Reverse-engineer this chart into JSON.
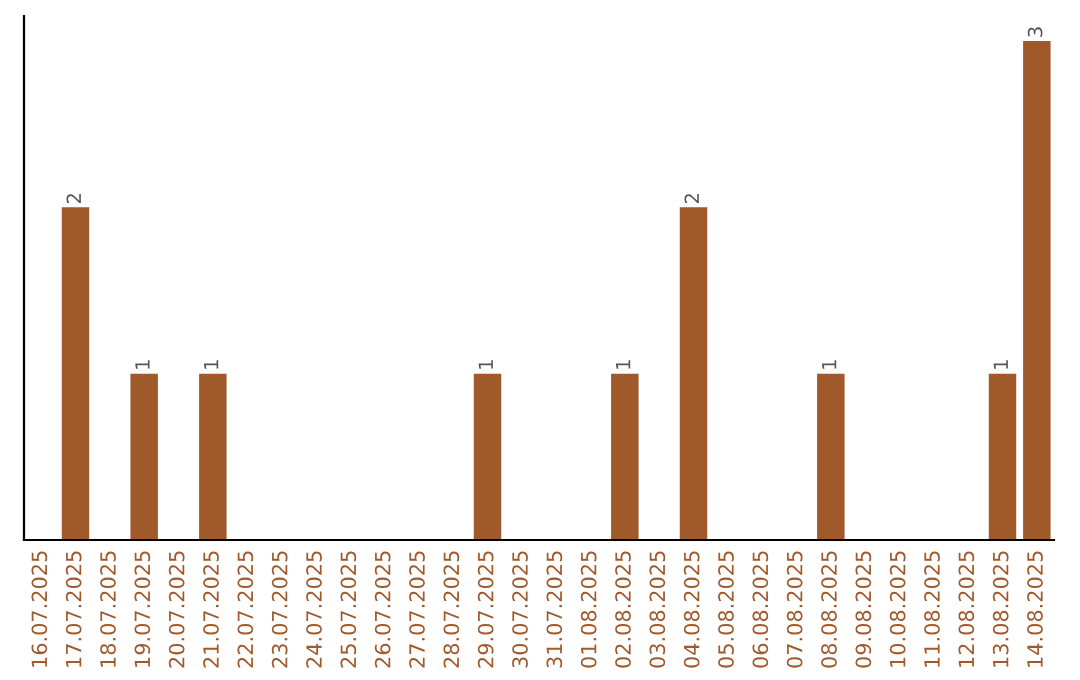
{
  "chart_data": {
    "type": "bar",
    "categories": [
      "16.07.2025",
      "17.07.2025",
      "18.07.2025",
      "19.07.2025",
      "20.07.2025",
      "21.07.2025",
      "22.07.2025",
      "23.07.2025",
      "24.07.2025",
      "25.07.2025",
      "26.07.2025",
      "27.07.2025",
      "28.07.2025",
      "29.07.2025",
      "30.07.2025",
      "31.07.2025",
      "01.08.2025",
      "02.08.2025",
      "03.08.2025",
      "04.08.2025",
      "05.08.2025",
      "06.08.2025",
      "07.08.2025",
      "08.08.2025",
      "09.08.2025",
      "10.08.2025",
      "11.08.2025",
      "12.08.2025",
      "13.08.2025",
      "14.08.2025"
    ],
    "values": [
      0,
      2,
      0,
      1,
      0,
      1,
      0,
      0,
      0,
      0,
      0,
      0,
      0,
      1,
      0,
      0,
      0,
      1,
      0,
      2,
      0,
      0,
      0,
      1,
      0,
      0,
      0,
      0,
      1,
      3
    ],
    "value_labels": [
      null,
      "2",
      null,
      "1",
      null,
      "1",
      null,
      null,
      null,
      null,
      null,
      null,
      null,
      "1",
      null,
      null,
      null,
      "1",
      null,
      "2",
      null,
      null,
      null,
      "1",
      null,
      null,
      null,
      null,
      "1",
      "3"
    ],
    "color": "#a0592b",
    "tick_labels": "x",
    "grid": false,
    "legend": false
  }
}
